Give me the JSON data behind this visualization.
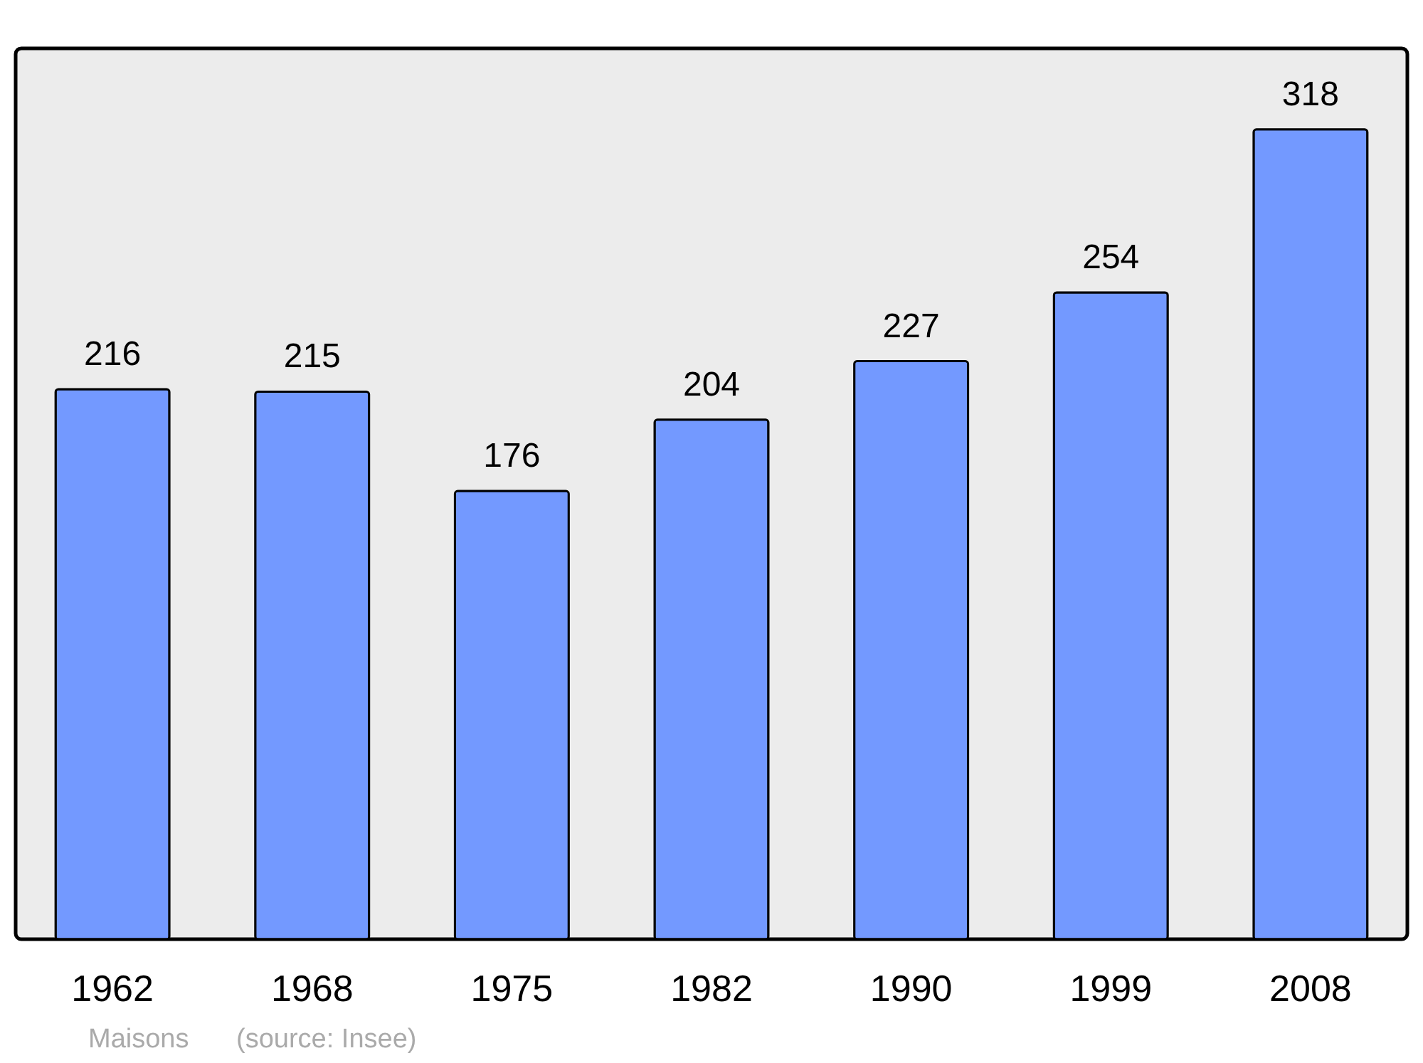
{
  "chart_data": {
    "type": "bar",
    "categories": [
      "1962",
      "1968",
      "1975",
      "1982",
      "1990",
      "1999",
      "2008"
    ],
    "values": [
      216,
      215,
      176,
      204,
      227,
      254,
      318
    ],
    "color": "#7399ff",
    "data_labels": true,
    "annotations": [
      "Maisons",
      "(source: Insee)"
    ]
  }
}
